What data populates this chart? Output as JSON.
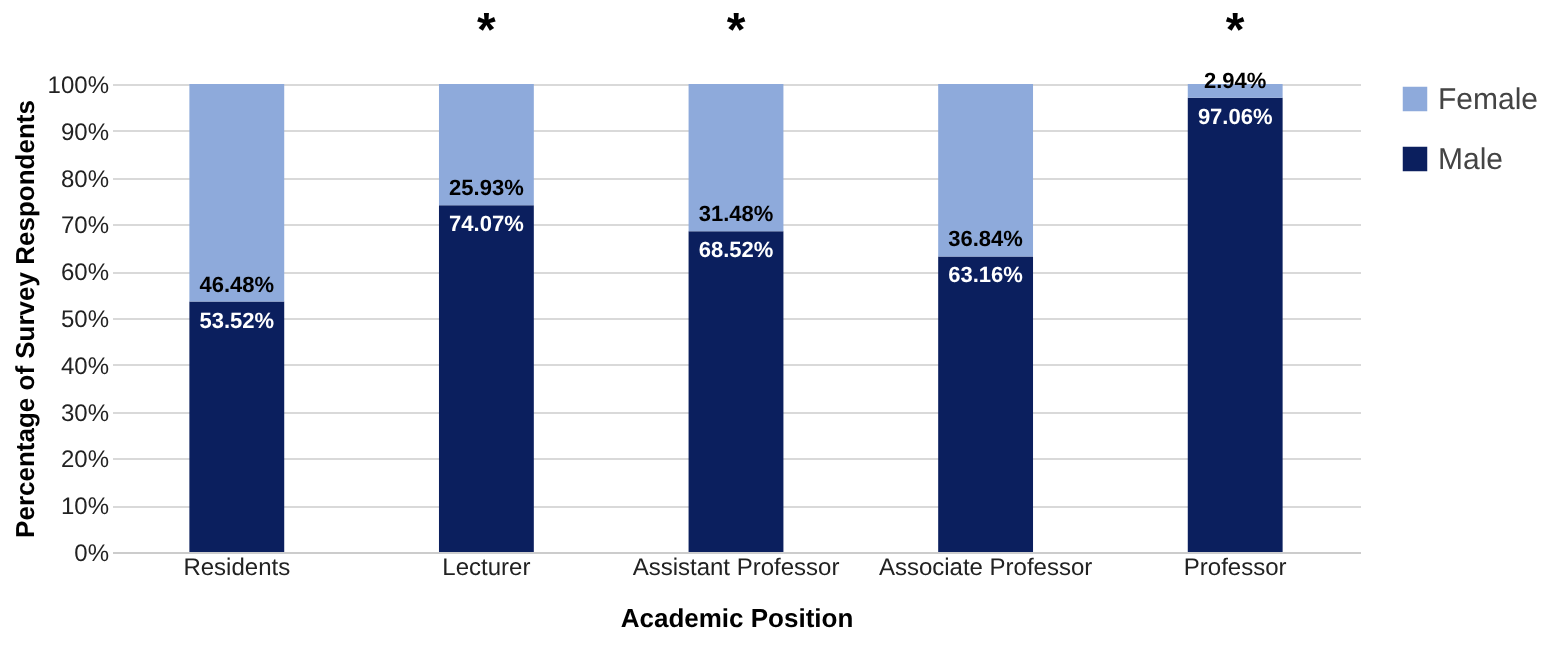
{
  "chart_data": {
    "type": "bar",
    "stacked": true,
    "xlabel": "Academic Position",
    "ylabel": "Percentage of Survey Respondents",
    "categories": [
      "Residents",
      "Lecturer",
      "Assistant Professor",
      "Associate Professor",
      "Professor"
    ],
    "series": [
      {
        "name": "Male",
        "color": "#0b1f5e",
        "values": [
          53.52,
          74.07,
          68.52,
          63.16,
          97.06
        ],
        "value_labels": [
          "53.52%",
          "74.07%",
          "68.52%",
          "63.16%",
          "97.06%"
        ]
      },
      {
        "name": "Female",
        "color": "#8eaadb",
        "values": [
          46.48,
          25.93,
          31.48,
          36.84,
          2.94
        ],
        "value_labels": [
          "46.48%",
          "25.93%",
          "31.48%",
          "36.84%",
          "2.94%"
        ]
      }
    ],
    "ylim": [
      0,
      100
    ],
    "yticks": [
      {
        "value": 0,
        "label": "0%"
      },
      {
        "value": 10,
        "label": "10%"
      },
      {
        "value": 20,
        "label": "20%"
      },
      {
        "value": 30,
        "label": "30%"
      },
      {
        "value": 40,
        "label": "40%"
      },
      {
        "value": 50,
        "label": "50%"
      },
      {
        "value": 60,
        "label": "60%"
      },
      {
        "value": 70,
        "label": "70%"
      },
      {
        "value": 80,
        "label": "80%"
      },
      {
        "value": 90,
        "label": "90%"
      },
      {
        "value": 100,
        "label": "100%"
      }
    ],
    "grid": "y",
    "legend": "right",
    "annotations": [
      {
        "text": "*",
        "x": "Lecturer",
        "y": 100
      },
      {
        "text": "*",
        "x": "Assistant Professor",
        "y": 100
      },
      {
        "text": "*",
        "x": "Professor",
        "y": 100
      }
    ]
  }
}
